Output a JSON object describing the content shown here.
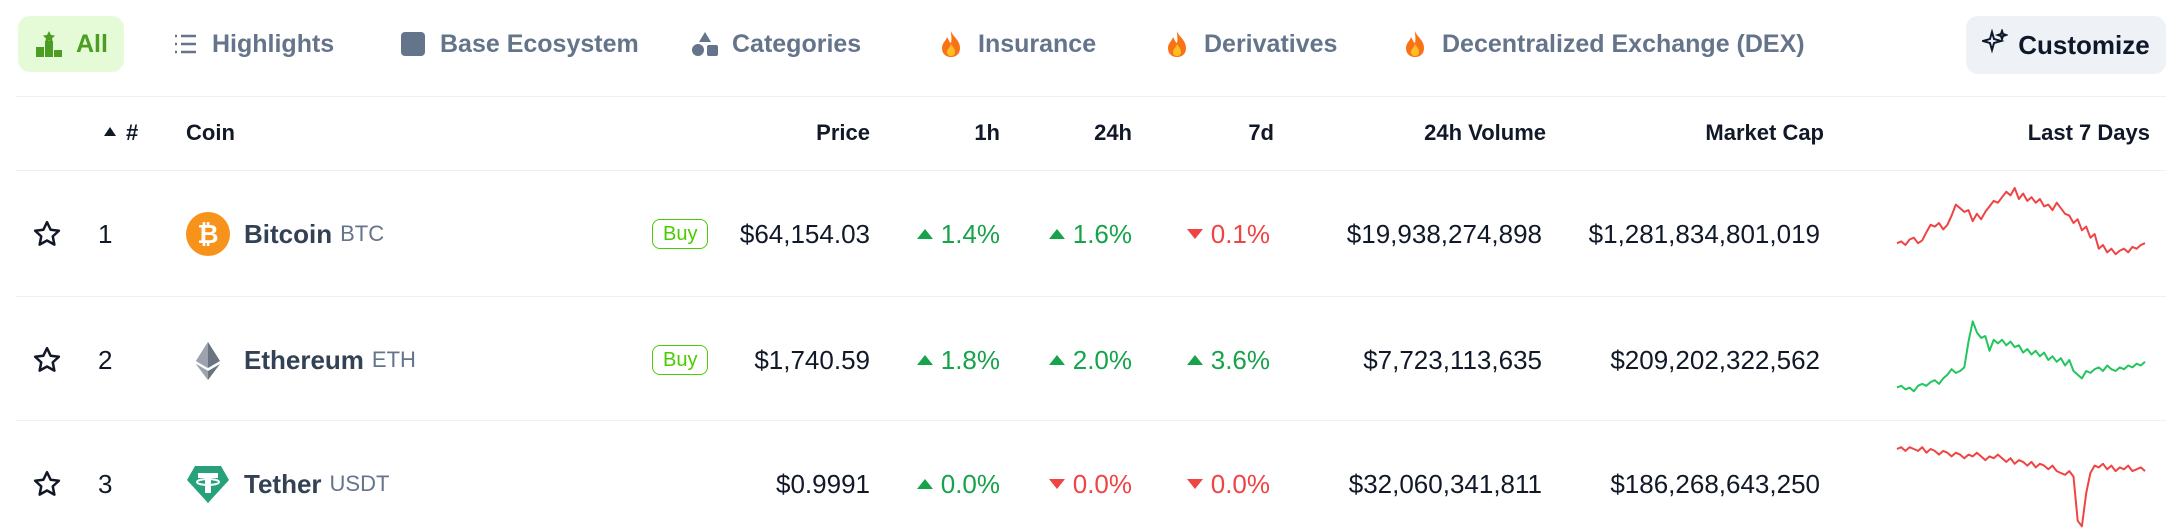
{
  "tabs": [
    {
      "label": "All",
      "icon": "podium-icon",
      "active": true
    },
    {
      "label": "Highlights",
      "icon": "list-icon"
    },
    {
      "label": "Base Ecosystem",
      "icon": "square-icon"
    },
    {
      "label": "Categories",
      "icon": "shapes-icon"
    },
    {
      "label": "Insurance",
      "icon": "fire-icon"
    },
    {
      "label": "Derivatives",
      "icon": "fire-icon"
    },
    {
      "label": "Decentralized Exchange (DEX)",
      "icon": "fire-icon"
    }
  ],
  "customize_label": "Customize",
  "header": {
    "rank": "#",
    "coin": "Coin",
    "price": "Price",
    "h1": "1h",
    "h24": "24h",
    "d7": "7d",
    "volume": "24h Volume",
    "market_cap": "Market Cap",
    "last7": "Last 7 Days"
  },
  "rows": [
    {
      "rank": "1",
      "name": "Bitcoin",
      "symbol": "BTC",
      "buy": "Buy",
      "price": "$64,154.03",
      "h1": "1.4%",
      "h1_dir": "up",
      "h24": "1.6%",
      "h24_dir": "up",
      "d7": "0.1%",
      "d7_dir": "down",
      "volume": "$19,938,274,898",
      "market_cap": "$1,281,834,801,019",
      "spark_color": "#ef4444",
      "spark": [
        40,
        42,
        38,
        44,
        46,
        40,
        43,
        52,
        60,
        58,
        62,
        55,
        60,
        70,
        82,
        78,
        74,
        76,
        64,
        72,
        66,
        74,
        80,
        86,
        84,
        90,
        96,
        92,
        100,
        88,
        94,
        86,
        90,
        84,
        88,
        80,
        82,
        76,
        84,
        78,
        72,
        70,
        62,
        66,
        54,
        58,
        46,
        50,
        34,
        38,
        30,
        34,
        28,
        32,
        34,
        30,
        36,
        34,
        38,
        40
      ]
    },
    {
      "rank": "2",
      "name": "Ethereum",
      "symbol": "ETH",
      "buy": "Buy",
      "price": "$1,740.59",
      "h1": "1.8%",
      "h1_dir": "up",
      "h24": "2.0%",
      "h24_dir": "up",
      "d7": "3.6%",
      "d7_dir": "up",
      "volume": "$7,723,113,635",
      "market_cap": "$209,202,322,562",
      "spark_color": "#22c55e",
      "spark": [
        20,
        22,
        18,
        20,
        16,
        22,
        24,
        22,
        26,
        28,
        24,
        30,
        34,
        40,
        36,
        38,
        42,
        70,
        92,
        80,
        74,
        76,
        60,
        72,
        68,
        72,
        66,
        70,
        64,
        66,
        58,
        62,
        56,
        60,
        54,
        58,
        50,
        54,
        48,
        52,
        44,
        50,
        38,
        34,
        30,
        38,
        36,
        40,
        42,
        38,
        44,
        40,
        38,
        42,
        40,
        44,
        42,
        46,
        44,
        48
      ]
    },
    {
      "rank": "3",
      "name": "Tether",
      "symbol": "USDT",
      "buy": "",
      "price": "$0.9991",
      "h1": "0.0%",
      "h1_dir": "up",
      "h24": "0.0%",
      "h24_dir": "down",
      "d7": "0.0%",
      "d7_dir": "down",
      "volume": "$32,060,341,811",
      "market_cap": "$186,268,643,250",
      "spark_color": "#ef4444",
      "spark": [
        88,
        90,
        86,
        90,
        88,
        86,
        90,
        84,
        88,
        86,
        82,
        86,
        84,
        80,
        84,
        82,
        78,
        82,
        80,
        84,
        80,
        76,
        80,
        78,
        82,
        78,
        74,
        78,
        72,
        76,
        74,
        70,
        74,
        68,
        72,
        70,
        66,
        70,
        64,
        62,
        60,
        64,
        58,
        10,
        4,
        40,
        62,
        70,
        68,
        72,
        66,
        70,
        64,
        68,
        66,
        70,
        64,
        66,
        68,
        64
      ]
    }
  ]
}
